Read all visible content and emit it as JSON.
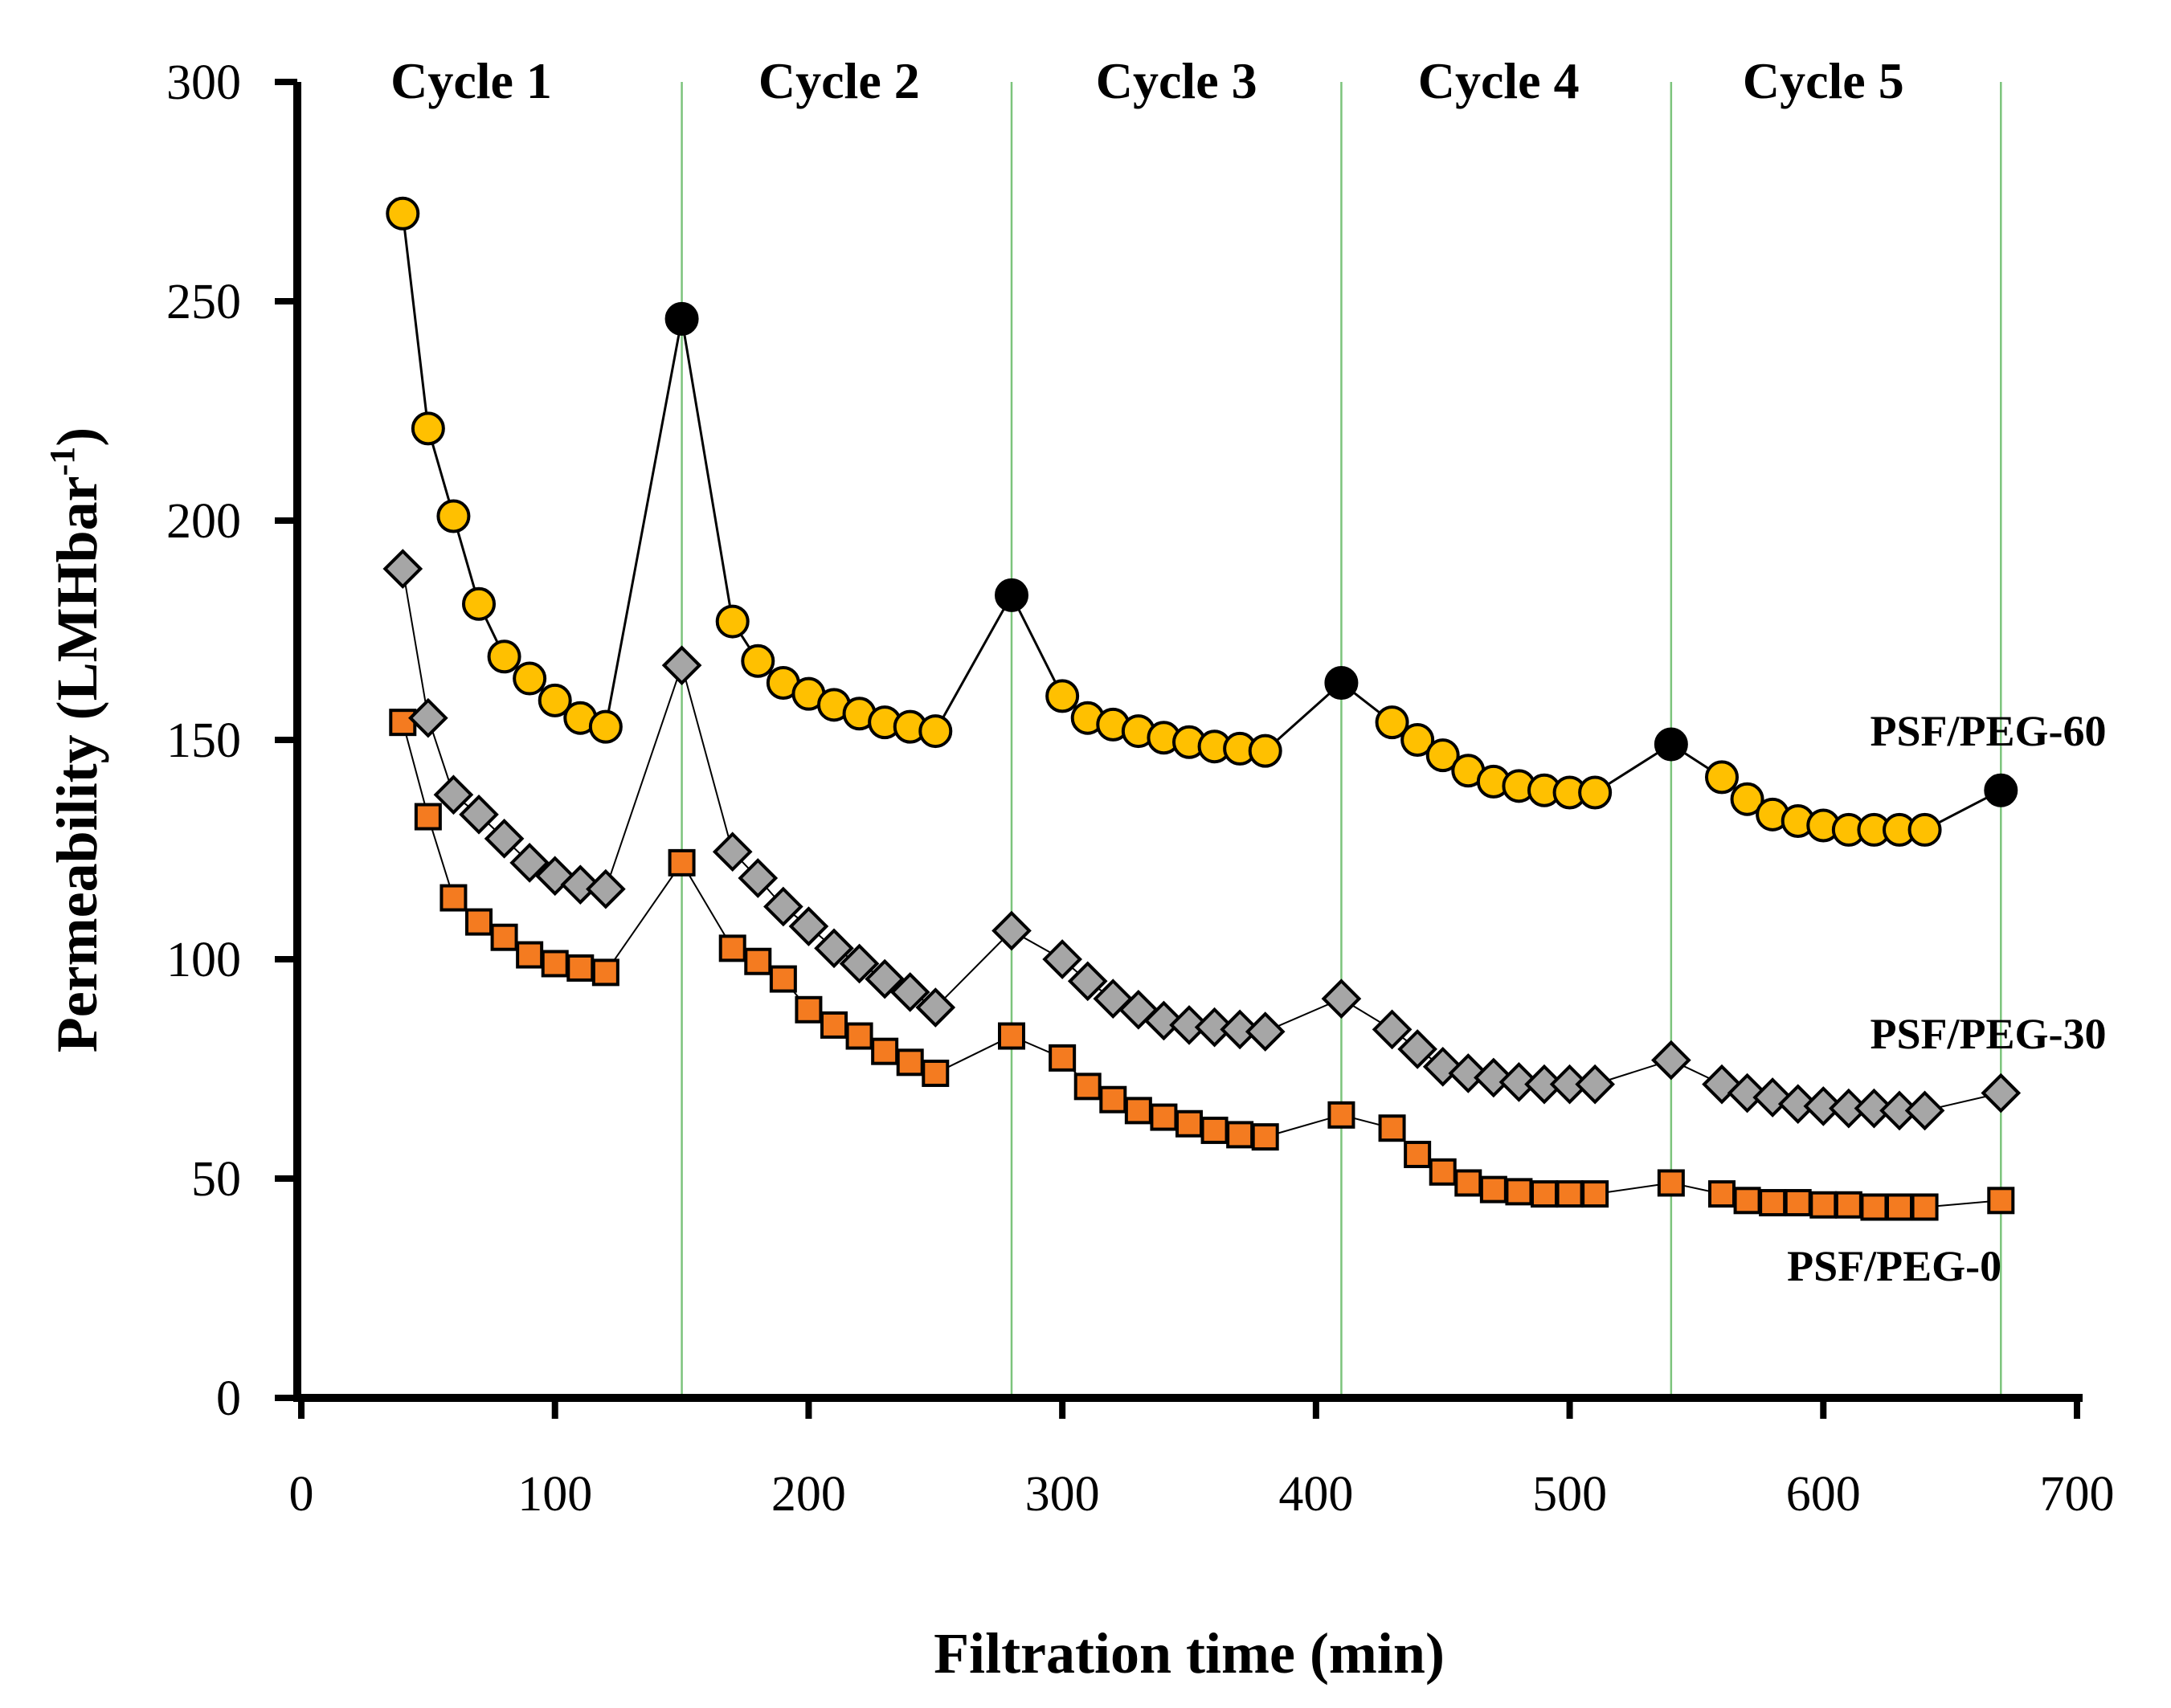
{
  "chart_data": {
    "type": "line",
    "xlabel": "Filtration time (min)",
    "ylabel": "Permeability (LMHbar",
    "ylabel_superscript": "-1",
    "ylabel_close": ")",
    "xlim": [
      0,
      700
    ],
    "ylim": [
      0,
      300
    ],
    "xticks": [
      0,
      100,
      200,
      300,
      400,
      500,
      600,
      700
    ],
    "yticks": [
      0,
      50,
      100,
      150,
      200,
      250,
      300
    ],
    "grid": false,
    "cycle_boundaries": [
      150,
      280,
      410,
      540,
      670
    ],
    "cycle_labels": [
      {
        "label": "Cycle 1",
        "x": 67
      },
      {
        "label": "Cycle 2",
        "x": 212
      },
      {
        "label": "Cycle 3",
        "x": 345
      },
      {
        "label": "Cycle 4",
        "x": 472
      },
      {
        "label": "Cycle 5",
        "x": 600
      }
    ],
    "colors": {
      "boundary": "#7cc47c",
      "circle": "#ffc000",
      "circle_highlight": "#000000",
      "diamond": "#a6a6a6",
      "square": "#f47b20"
    },
    "series": [
      {
        "name": "PSF/PEG-60",
        "label_position": [
          665,
          152
        ],
        "marker": "circle",
        "line_width": 3,
        "highlight_x": [
          150,
          280,
          410,
          540,
          670
        ],
        "x": [
          40,
          50,
          60,
          70,
          80,
          90,
          100,
          110,
          120,
          150,
          170,
          180,
          190,
          200,
          210,
          220,
          230,
          240,
          250,
          280,
          300,
          310,
          320,
          330,
          340,
          350,
          360,
          370,
          380,
          410,
          430,
          440,
          450,
          460,
          470,
          480,
          490,
          500,
          510,
          540,
          560,
          570,
          580,
          590,
          600,
          610,
          620,
          630,
          640,
          670
        ],
        "values": [
          270,
          221,
          201,
          181,
          169,
          164,
          159,
          155,
          153,
          246,
          177,
          168,
          163,
          160.5,
          158,
          156,
          154,
          153,
          152,
          183,
          160,
          155,
          153.5,
          152,
          150.5,
          149.5,
          148.5,
          148,
          147.5,
          163,
          154,
          150,
          146.5,
          143,
          140.5,
          139.5,
          138.5,
          138,
          138,
          149,
          141.5,
          136.5,
          133,
          131.5,
          130.5,
          129.5,
          129.5,
          129.5,
          129.5,
          138.5
        ]
      },
      {
        "name": "PSF/PEG-30",
        "label_position": [
          665,
          83
        ],
        "marker": "diamond",
        "line_width": 2,
        "highlight_x": [],
        "x": [
          40,
          50,
          60,
          70,
          80,
          90,
          100,
          110,
          120,
          150,
          170,
          180,
          190,
          200,
          210,
          220,
          230,
          240,
          250,
          280,
          300,
          310,
          320,
          330,
          340,
          350,
          360,
          370,
          380,
          410,
          430,
          440,
          450,
          460,
          470,
          480,
          490,
          500,
          510,
          540,
          560,
          570,
          580,
          590,
          600,
          610,
          620,
          630,
          640,
          670
        ],
        "values": [
          189,
          155,
          137.5,
          133,
          127.5,
          122,
          119,
          117,
          116,
          167,
          124.5,
          118.5,
          112,
          107.5,
          102.5,
          99,
          95.5,
          92.5,
          89,
          106.5,
          100,
          95,
          91,
          88.5,
          86,
          85,
          84.5,
          84,
          83.5,
          91,
          84,
          79.5,
          75.5,
          74,
          73,
          72,
          71.5,
          71.5,
          71.5,
          77,
          71.5,
          69.5,
          68.5,
          67,
          66.5,
          66,
          66,
          65.5,
          65.5,
          69.5
        ]
      },
      {
        "name": "PSF/PEG-0",
        "label_position": [
          628,
          30
        ],
        "marker": "square",
        "line_width": 2,
        "highlight_x": [],
        "x": [
          40,
          50,
          60,
          70,
          80,
          90,
          100,
          110,
          120,
          150,
          170,
          180,
          190,
          200,
          210,
          220,
          230,
          240,
          250,
          280,
          300,
          310,
          320,
          330,
          340,
          350,
          360,
          370,
          380,
          410,
          430,
          440,
          450,
          460,
          470,
          480,
          490,
          500,
          510,
          540,
          560,
          570,
          580,
          590,
          600,
          610,
          620,
          630,
          640,
          670
        ],
        "values": [
          154,
          132.5,
          114,
          108.5,
          105,
          101,
          99,
          98,
          97,
          122,
          102.5,
          99.5,
          95.5,
          88.5,
          85,
          82.5,
          79,
          76.5,
          74,
          82.5,
          77.5,
          71,
          68,
          65.5,
          64,
          62.5,
          61,
          60,
          59.5,
          64.5,
          61.5,
          55.5,
          51.5,
          49,
          47.5,
          47,
          46.5,
          46.5,
          46.5,
          49,
          46.5,
          45,
          44.5,
          44.5,
          44,
          44,
          43.5,
          43.5,
          43.5,
          45
        ]
      }
    ]
  }
}
